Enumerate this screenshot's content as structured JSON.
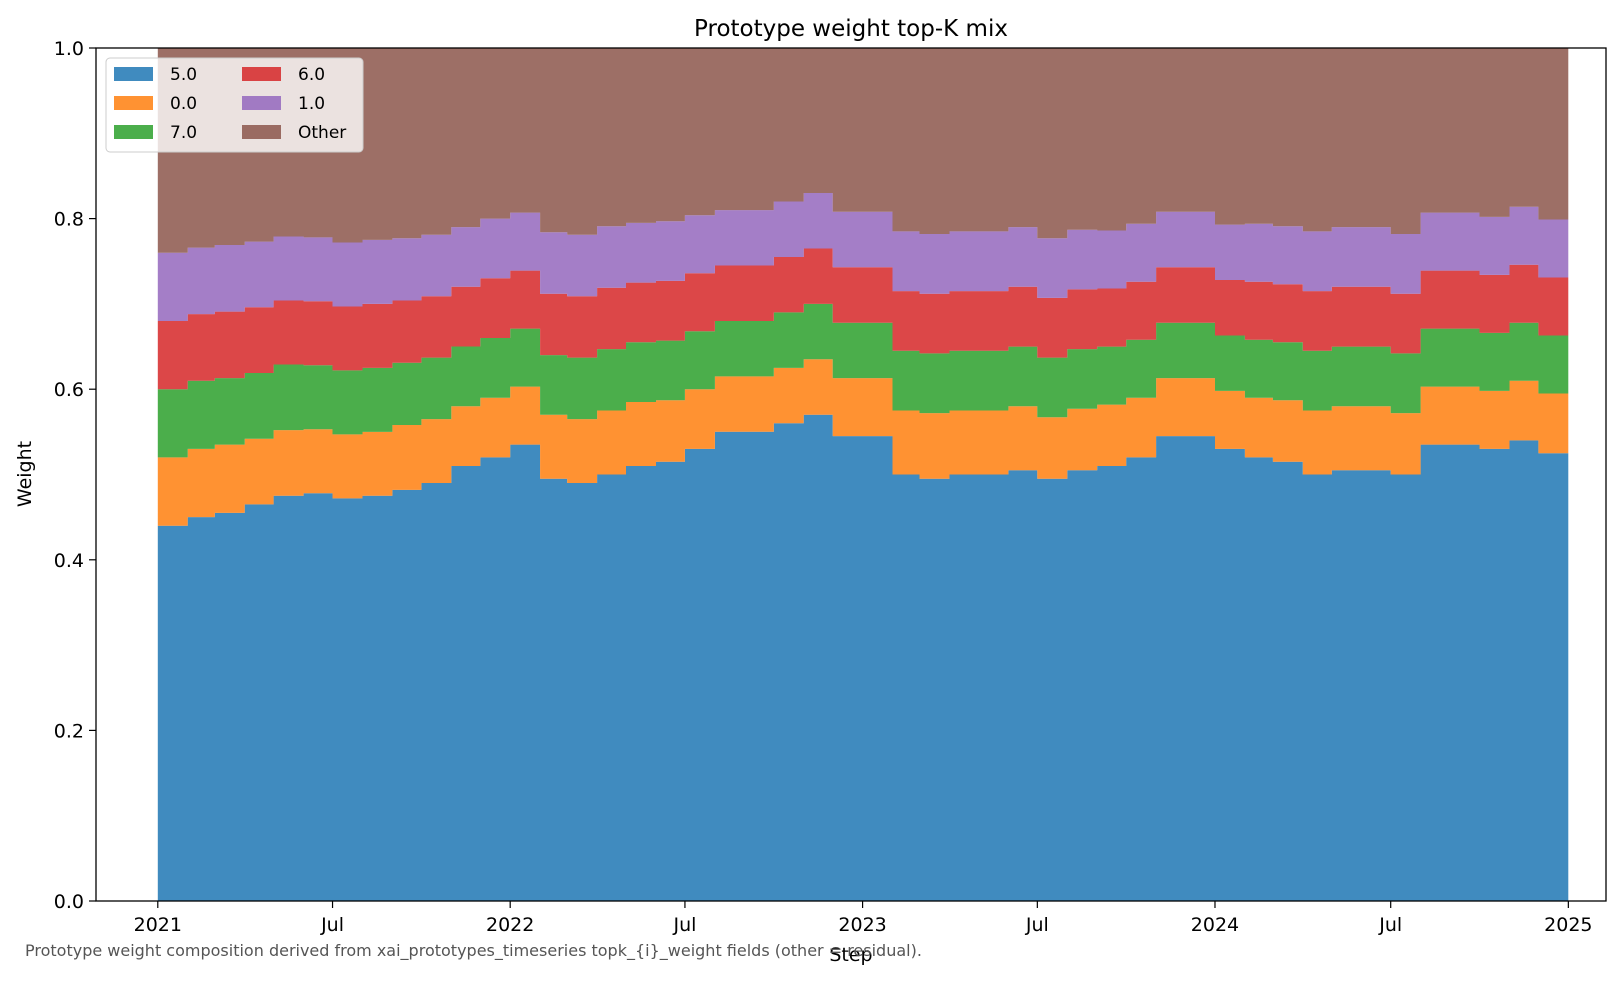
{
  "chart_data": {
    "type": "area",
    "stacked": true,
    "step": true,
    "title": "Prototype weight top-K mix",
    "xlabel": "Step",
    "ylabel": "Weight",
    "xlim": [
      "2020-10-29",
      "2025-02-09"
    ],
    "ylim": [
      0,
      1
    ],
    "x_ticks": [
      {
        "date": "2021-01-01",
        "label": "2021"
      },
      {
        "date": "2021-07-01",
        "label": "Jul"
      },
      {
        "date": "2022-01-01",
        "label": "2022"
      },
      {
        "date": "2022-07-01",
        "label": "Jul"
      },
      {
        "date": "2023-01-01",
        "label": "2023"
      },
      {
        "date": "2023-07-01",
        "label": "Jul"
      },
      {
        "date": "2024-01-01",
        "label": "2024"
      },
      {
        "date": "2024-07-01",
        "label": "Jul"
      },
      {
        "date": "2025-01-01",
        "label": "2025"
      }
    ],
    "y_ticks": [
      "0.0",
      "0.2",
      "0.4",
      "0.6",
      "0.8",
      "1.0"
    ],
    "grid": false,
    "legend": {
      "placement": "top-left",
      "columns": 2
    },
    "x": [
      "2021-01-01",
      "2021-02-01",
      "2021-03-01",
      "2021-04-01",
      "2021-05-01",
      "2021-06-01",
      "2021-07-01",
      "2021-08-01",
      "2021-09-01",
      "2021-10-01",
      "2021-11-01",
      "2021-12-01",
      "2022-01-01",
      "2022-02-01",
      "2022-03-01",
      "2022-04-01",
      "2022-05-01",
      "2022-06-01",
      "2022-07-01",
      "2022-08-01",
      "2022-09-01",
      "2022-10-01",
      "2022-11-01",
      "2022-12-01",
      "2023-01-01",
      "2023-02-01",
      "2023-03-01",
      "2023-04-01",
      "2023-05-01",
      "2023-06-01",
      "2023-07-01",
      "2023-08-01",
      "2023-09-01",
      "2023-10-01",
      "2023-11-01",
      "2023-12-01",
      "2024-01-01",
      "2024-02-01",
      "2024-03-01",
      "2024-04-01",
      "2024-05-01",
      "2024-06-01",
      "2024-07-01",
      "2024-08-01",
      "2024-09-01",
      "2024-10-01",
      "2024-11-01",
      "2024-12-01",
      "2025-01-01"
    ],
    "series": [
      {
        "name": "5.0",
        "color": "#1f77b4",
        "values": [
          0.44,
          0.45,
          0.455,
          0.465,
          0.475,
          0.478,
          0.472,
          0.475,
          0.482,
          0.49,
          0.51,
          0.52,
          0.535,
          0.495,
          0.49,
          0.5,
          0.51,
          0.515,
          0.53,
          0.55,
          0.55,
          0.56,
          0.57,
          0.545,
          0.545,
          0.5,
          0.495,
          0.5,
          0.5,
          0.505,
          0.495,
          0.505,
          0.51,
          0.52,
          0.545,
          0.545,
          0.53,
          0.52,
          0.515,
          0.5,
          0.505,
          0.505,
          0.5,
          0.535,
          0.535,
          0.53,
          0.54,
          0.525,
          0.515
        ]
      },
      {
        "name": "0.0",
        "color": "#ff7f0e",
        "values": [
          0.08,
          0.08,
          0.08,
          0.077,
          0.077,
          0.075,
          0.075,
          0.075,
          0.076,
          0.075,
          0.07,
          0.07,
          0.068,
          0.075,
          0.075,
          0.075,
          0.075,
          0.072,
          0.07,
          0.065,
          0.065,
          0.065,
          0.065,
          0.068,
          0.068,
          0.075,
          0.077,
          0.075,
          0.075,
          0.075,
          0.072,
          0.072,
          0.072,
          0.07,
          0.068,
          0.068,
          0.068,
          0.07,
          0.072,
          0.075,
          0.075,
          0.075,
          0.072,
          0.068,
          0.068,
          0.068,
          0.07,
          0.07,
          0.07
        ]
      },
      {
        "name": "7.0",
        "color": "#2ca02c",
        "values": [
          0.08,
          0.08,
          0.078,
          0.077,
          0.077,
          0.075,
          0.075,
          0.075,
          0.073,
          0.072,
          0.07,
          0.07,
          0.068,
          0.07,
          0.072,
          0.072,
          0.07,
          0.07,
          0.068,
          0.065,
          0.065,
          0.065,
          0.065,
          0.065,
          0.065,
          0.07,
          0.07,
          0.07,
          0.07,
          0.07,
          0.07,
          0.07,
          0.068,
          0.068,
          0.065,
          0.065,
          0.065,
          0.068,
          0.068,
          0.07,
          0.07,
          0.07,
          0.07,
          0.068,
          0.068,
          0.068,
          0.068,
          0.068,
          0.068
        ]
      },
      {
        "name": "6.0",
        "color": "#d62728",
        "values": [
          0.08,
          0.078,
          0.078,
          0.077,
          0.075,
          0.075,
          0.075,
          0.075,
          0.073,
          0.072,
          0.07,
          0.07,
          0.068,
          0.072,
          0.072,
          0.072,
          0.07,
          0.07,
          0.068,
          0.065,
          0.065,
          0.065,
          0.065,
          0.065,
          0.065,
          0.07,
          0.07,
          0.07,
          0.07,
          0.07,
          0.07,
          0.07,
          0.068,
          0.068,
          0.065,
          0.065,
          0.065,
          0.068,
          0.068,
          0.07,
          0.07,
          0.07,
          0.07,
          0.068,
          0.068,
          0.068,
          0.068,
          0.068,
          0.068
        ]
      },
      {
        "name": "1.0",
        "color": "#9467bd",
        "values": [
          0.08,
          0.078,
          0.078,
          0.077,
          0.075,
          0.075,
          0.075,
          0.075,
          0.073,
          0.072,
          0.07,
          0.07,
          0.068,
          0.072,
          0.072,
          0.072,
          0.07,
          0.07,
          0.068,
          0.065,
          0.065,
          0.065,
          0.065,
          0.065,
          0.065,
          0.07,
          0.07,
          0.07,
          0.07,
          0.07,
          0.07,
          0.07,
          0.068,
          0.068,
          0.065,
          0.065,
          0.065,
          0.068,
          0.068,
          0.07,
          0.07,
          0.07,
          0.07,
          0.068,
          0.068,
          0.068,
          0.068,
          0.068,
          0.068
        ]
      },
      {
        "name": "Other",
        "color": "#8c564b",
        "values": [
          0.24,
          0.234,
          0.231,
          0.227,
          0.221,
          0.222,
          0.228,
          0.225,
          0.223,
          0.219,
          0.21,
          0.2,
          0.193,
          0.216,
          0.219,
          0.209,
          0.205,
          0.203,
          0.196,
          0.19,
          0.19,
          0.18,
          0.17,
          0.192,
          0.192,
          0.215,
          0.218,
          0.215,
          0.215,
          0.21,
          0.223,
          0.213,
          0.214,
          0.206,
          0.192,
          0.192,
          0.207,
          0.206,
          0.209,
          0.215,
          0.21,
          0.21,
          0.218,
          0.193,
          0.193,
          0.198,
          0.186,
          0.201,
          0.211
        ]
      }
    ]
  },
  "caption": "Prototype weight composition derived from xai_prototypes_timeseries topk_{i}_weight fields (other = residual)."
}
